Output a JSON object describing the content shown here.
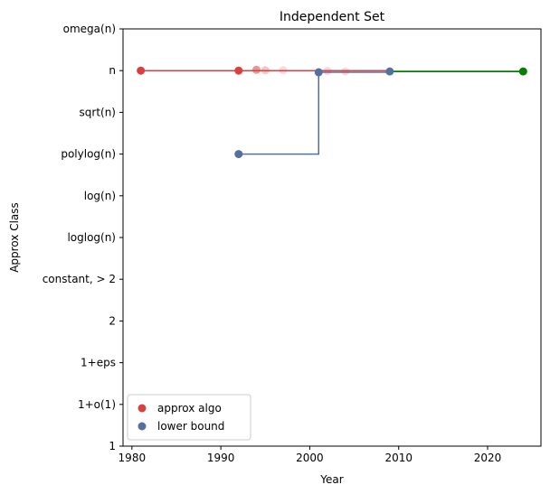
{
  "chart_data": {
    "type": "scatter",
    "title": "Independent Set",
    "xlabel": "Year",
    "ylabel": "Approx Class",
    "xlim": [
      1979,
      2026
    ],
    "xticks": [
      1980,
      1990,
      2000,
      2010,
      2020
    ],
    "categories": [
      "1",
      "1+o(1)",
      "1+eps",
      "2",
      "constant, > 2",
      "loglog(n)",
      "log(n)",
      "polylog(n)",
      "sqrt(n)",
      "n",
      "omega(n)"
    ],
    "series": [
      {
        "name": "approx algo",
        "color": "#d94040",
        "kind": "scatter",
        "points": [
          {
            "x": 1981,
            "y": 9,
            "alpha": 1.0
          },
          {
            "x": 1992,
            "y": 9,
            "alpha": 1.0
          },
          {
            "x": 1994,
            "y": 9.02,
            "alpha": 0.55
          },
          {
            "x": 1995,
            "y": 9.01,
            "alpha": 0.3
          },
          {
            "x": 1997,
            "y": 9.01,
            "alpha": 0.2
          },
          {
            "x": 2002,
            "y": 8.99,
            "alpha": 0.2
          },
          {
            "x": 2004,
            "y": 8.98,
            "alpha": 0.2
          }
        ]
      },
      {
        "name": "lower bound",
        "color": "#5470a0",
        "kind": "scatter",
        "points": [
          {
            "x": 1992,
            "y": 7,
            "alpha": 1.0
          },
          {
            "x": 2001,
            "y": 8.96,
            "alpha": 1.0
          },
          {
            "x": 2009,
            "y": 8.98,
            "alpha": 1.0
          }
        ]
      },
      {
        "name": "approx algo frontier",
        "color": "#d94040",
        "kind": "step",
        "points": [
          {
            "x": 1981,
            "y": 9
          },
          {
            "x": 2009,
            "y": 8.98
          }
        ]
      },
      {
        "name": "lower bound frontier",
        "color": "#5470a0",
        "kind": "step",
        "points": [
          {
            "x": 1992,
            "y": 7
          },
          {
            "x": 2001,
            "y": 7
          },
          {
            "x": 2001,
            "y": 8.96
          },
          {
            "x": 2009,
            "y": 8.96
          }
        ]
      },
      {
        "name": "tight bound",
        "color": "#008000",
        "kind": "line",
        "points": [
          {
            "x": 2009,
            "y": 8.98
          },
          {
            "x": 2024,
            "y": 8.98
          }
        ],
        "marker_points": [
          {
            "x": 2024,
            "y": 8.98
          }
        ]
      }
    ],
    "legend": {
      "placement": "lower-left",
      "entries": [
        {
          "label": "approx algo",
          "color": "#d94040"
        },
        {
          "label": "lower bound",
          "color": "#5470a0"
        }
      ]
    },
    "grid": false
  }
}
